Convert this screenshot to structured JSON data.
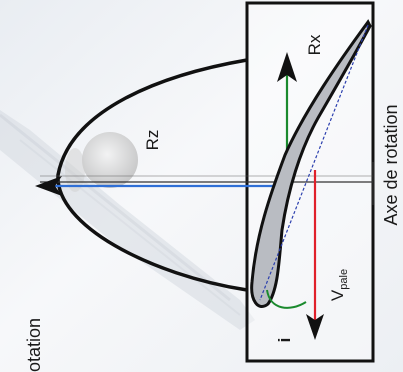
{
  "labels": {
    "rx": "Rx",
    "rz": "Rz",
    "axis": "Axe de rotation",
    "v": "V",
    "v_sub": "pale",
    "incidence": "i",
    "rotation_partial": "otation"
  },
  "colors": {
    "lift_arrow": "#1b8a2e",
    "drag_arrow": "#2f6fd6",
    "velocity_arrow": "#e0202a",
    "incidence_arc": "#1b8a2e",
    "chord_line": "#2b3fae",
    "blade_fill": "#b9bcc2",
    "outline": "#111111"
  },
  "icons": {
    "lift": "arrow-up-icon",
    "drag": "arrow-left-icon",
    "velocity": "arrow-down-icon"
  }
}
